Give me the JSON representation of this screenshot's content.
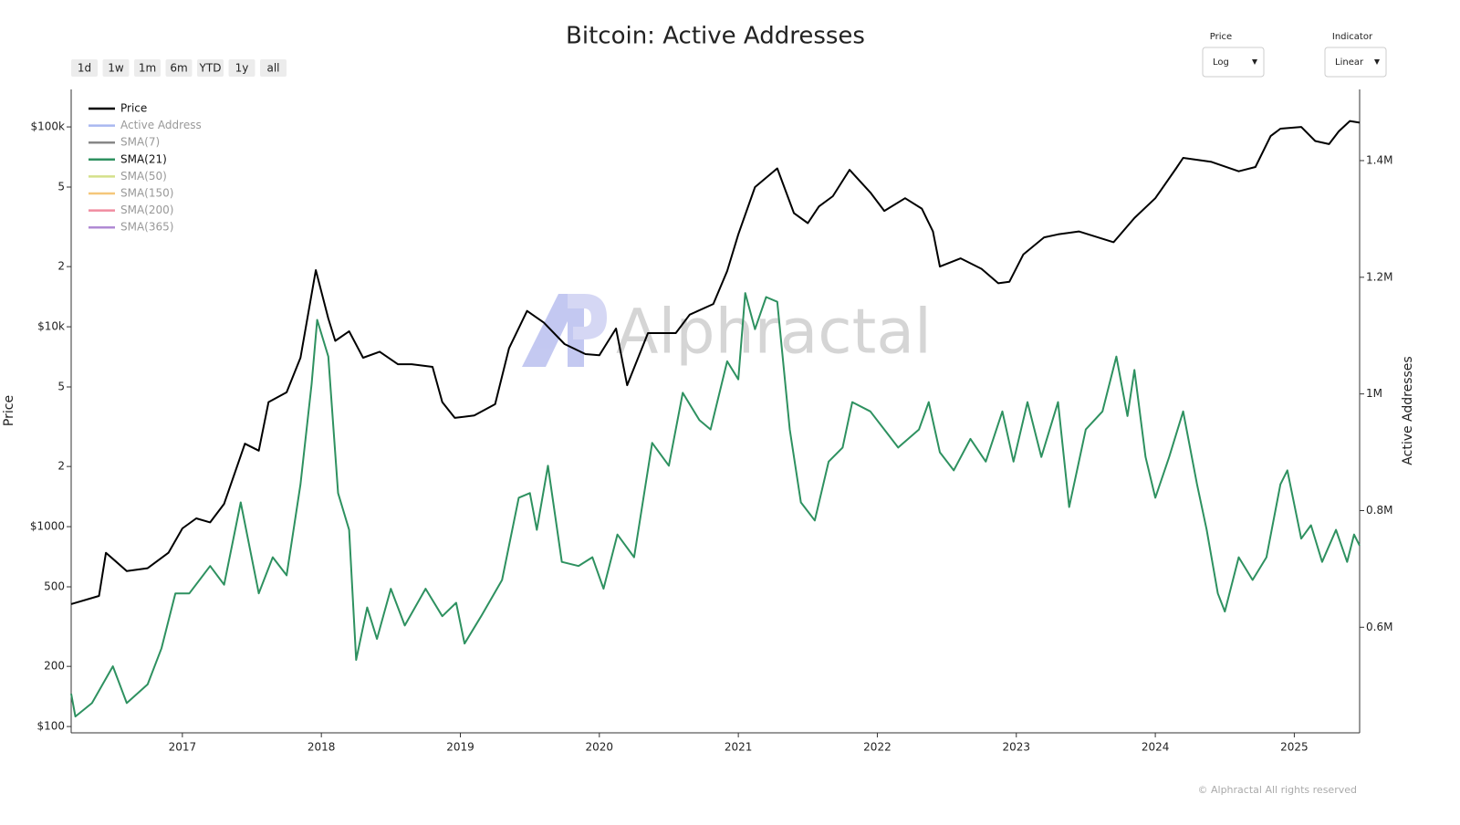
{
  "chart_data": {
    "type": "line",
    "title": "Bitcoin: Active Addresses",
    "range_buttons": [
      "1d",
      "1w",
      "1m",
      "6m",
      "YTD",
      "1y",
      "all"
    ],
    "controls": [
      {
        "label": "Price",
        "value": "Log"
      },
      {
        "label": "Indicator",
        "value": "Linear"
      }
    ],
    "ylabel": "Price",
    "y2label": "Active Addresses",
    "watermark": "Alphractal",
    "footer": "© Alphractal All rights reserved",
    "ylog": true,
    "grid": false,
    "legend_position": "upper left",
    "xlim": [
      2016.2,
      2025.47
    ],
    "xticks": [
      2017,
      2018,
      2019,
      2020,
      2021,
      2022,
      2023,
      2024,
      2025
    ],
    "ylim": [
      93,
      154000
    ],
    "yticks": [
      {
        "value": 100,
        "label": "$100"
      },
      200,
      500,
      {
        "value": 1000,
        "label": "$1000"
      },
      {
        "value": 2000,
        "label": "2"
      },
      {
        "value": 5000,
        "label": "5"
      },
      {
        "value": 10000,
        "label": "$10k"
      },
      {
        "value": 20000,
        "label": "2"
      },
      {
        "value": 50000,
        "label": "5"
      },
      {
        "value": 100000,
        "label": "$100k"
      }
    ],
    "y2lim": [
      419000,
      1522000
    ],
    "y2ticks": [
      {
        "value": 600000,
        "label": "0.6M"
      },
      {
        "value": 800000,
        "label": "0.8M"
      },
      {
        "value": 1000000,
        "label": "1M"
      },
      {
        "value": 1200000,
        "label": "1.2M"
      },
      {
        "value": 1400000,
        "label": "1.4M"
      }
    ],
    "series": [
      {
        "name": "Price",
        "color": "#000000",
        "visible": true,
        "x": [
          2016.2,
          2016.4,
          2016.45,
          2016.6,
          2016.75,
          2016.9,
          2017.0,
          2017.1,
          2017.2,
          2017.3,
          2017.45,
          2017.55,
          2017.62,
          2017.75,
          2017.85,
          2017.96,
          2018.05,
          2018.1,
          2018.2,
          2018.3,
          2018.42,
          2018.55,
          2018.65,
          2018.8,
          2018.87,
          2018.96,
          2019.1,
          2019.25,
          2019.35,
          2019.48,
          2019.6,
          2019.75,
          2019.9,
          2020.0,
          2020.12,
          2020.2,
          2020.35,
          2020.55,
          2020.65,
          2020.82,
          2020.92,
          2021.0,
          2021.12,
          2021.28,
          2021.4,
          2021.5,
          2021.58,
          2021.68,
          2021.8,
          2021.95,
          2022.05,
          2022.2,
          2022.32,
          2022.4,
          2022.45,
          2022.6,
          2022.75,
          2022.87,
          2022.95,
          2023.05,
          2023.2,
          2023.3,
          2023.45,
          2023.7,
          2023.85,
          2024.0,
          2024.15,
          2024.2,
          2024.4,
          2024.6,
          2024.72,
          2024.83,
          2024.9,
          2025.05,
          2025.15,
          2025.25,
          2025.32,
          2025.4,
          2025.47
        ],
        "values": [
          410,
          450,
          740,
          600,
          620,
          740,
          980,
          1100,
          1050,
          1300,
          2600,
          2400,
          4200,
          4700,
          7000,
          19200,
          11000,
          8500,
          9500,
          7000,
          7500,
          6500,
          6500,
          6300,
          4200,
          3500,
          3600,
          4100,
          7800,
          12000,
          10500,
          8200,
          7300,
          7200,
          9800,
          5100,
          9300,
          9300,
          11500,
          13000,
          19000,
          29000,
          50000,
          62000,
          37000,
          33000,
          40000,
          45000,
          61000,
          47000,
          38000,
          44000,
          39000,
          30000,
          20000,
          22000,
          19500,
          16500,
          16800,
          23000,
          28000,
          29000,
          30000,
          26500,
          35000,
          44000,
          62000,
          70000,
          67000,
          60000,
          63000,
          90000,
          98000,
          100000,
          85000,
          82000,
          95000,
          107000,
          105000
        ]
      },
      {
        "name": "Active Address",
        "color": "#a9b8f0",
        "visible": false
      },
      {
        "name": "SMA(7)",
        "color": "#888888",
        "visible": false
      },
      {
        "name": "SMA(21)",
        "color": "#2e9160",
        "visible": true,
        "axis": "y2",
        "x": [
          2016.2,
          2016.23,
          2016.35,
          2016.5,
          2016.6,
          2016.75,
          2016.85,
          2016.95,
          2017.05,
          2017.2,
          2017.3,
          2017.42,
          2017.55,
          2017.65,
          2017.75,
          2017.85,
          2017.93,
          2017.97,
          2018.05,
          2018.12,
          2018.2,
          2018.25,
          2018.33,
          2018.4,
          2018.5,
          2018.6,
          2018.75,
          2018.87,
          2018.97,
          2019.03,
          2019.15,
          2019.3,
          2019.42,
          2019.5,
          2019.55,
          2019.63,
          2019.73,
          2019.85,
          2019.95,
          2020.03,
          2020.13,
          2020.25,
          2020.38,
          2020.5,
          2020.6,
          2020.72,
          2020.8,
          2020.92,
          2021.0,
          2021.05,
          2021.12,
          2021.2,
          2021.28,
          2021.37,
          2021.45,
          2021.55,
          2021.65,
          2021.75,
          2021.82,
          2021.95,
          2022.05,
          2022.15,
          2022.3,
          2022.37,
          2022.45,
          2022.55,
          2022.67,
          2022.78,
          2022.9,
          2022.98,
          2023.08,
          2023.18,
          2023.3,
          2023.38,
          2023.5,
          2023.62,
          2023.72,
          2023.8,
          2023.85,
          2023.93,
          2024.0,
          2024.1,
          2024.2,
          2024.3,
          2024.37,
          2024.45,
          2024.5,
          2024.6,
          2024.7,
          2024.8,
          2024.9,
          2024.95,
          2025.05,
          2025.12,
          2025.2,
          2025.3,
          2025.38,
          2025.43,
          2025.47
        ],
        "values": [
          486000,
          447000,
          470000,
          533000,
          470000,
          502000,
          564000,
          658000,
          658000,
          705000,
          673000,
          814000,
          658000,
          720000,
          689000,
          845000,
          1017000,
          1127000,
          1064000,
          830000,
          767000,
          544000,
          634000,
          580000,
          666000,
          603000,
          666000,
          619000,
          642000,
          572000,
          619000,
          681000,
          822000,
          830000,
          767000,
          877000,
          712000,
          705000,
          720000,
          666000,
          759000,
          720000,
          916000,
          877000,
          1002000,
          955000,
          939000,
          1056000,
          1025000,
          1173000,
          1111000,
          1166000,
          1158000,
          939000,
          814000,
          783000,
          884000,
          908000,
          986000,
          970000,
          939000,
          908000,
          939000,
          986000,
          900000,
          869000,
          923000,
          884000,
          970000,
          884000,
          986000,
          892000,
          986000,
          806000,
          939000,
          970000,
          1064000,
          962000,
          1041000,
          892000,
          822000,
          892000,
          970000,
          845000,
          767000,
          658000,
          627000,
          720000,
          681000,
          720000,
          845000,
          869000,
          752000,
          775000,
          712000,
          767000,
          712000,
          759000,
          740000
        ]
      },
      {
        "name": "SMA(50)",
        "color": "#d4e08a",
        "visible": false
      },
      {
        "name": "SMA(150)",
        "color": "#f5c77a",
        "visible": false
      },
      {
        "name": "SMA(200)",
        "color": "#f08ca0",
        "visible": false
      },
      {
        "name": "SMA(365)",
        "color": "#b08ad4",
        "visible": false
      }
    ]
  }
}
